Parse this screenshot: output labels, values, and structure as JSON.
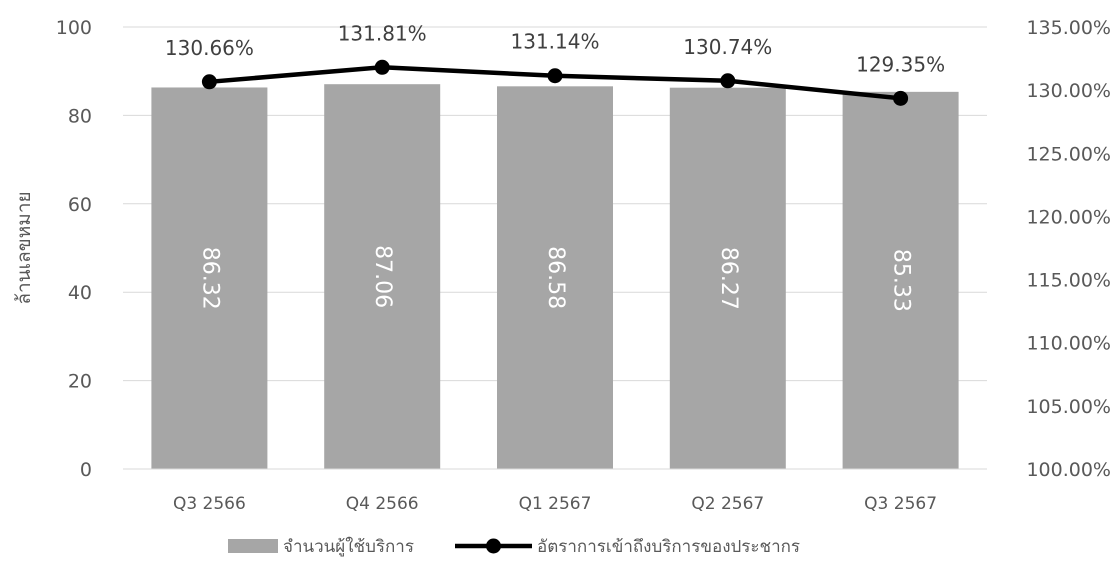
{
  "chart_data": {
    "type": "bar",
    "categories": [
      "Q3 2566",
      "Q4 2566",
      "Q1 2567",
      "Q2 2567",
      "Q3 2567"
    ],
    "series": [
      {
        "name": "จำนวนผู้ใช้บริการ",
        "type": "bar",
        "axis": "left",
        "values": [
          86.32,
          87.06,
          86.58,
          86.27,
          85.33
        ],
        "labels": [
          "86.32",
          "87.06",
          "86.58",
          "86.27",
          "85.33"
        ],
        "color": "#a6a6a6"
      },
      {
        "name": "อัตราการเข้าถึงบริการของประชากร",
        "type": "line",
        "axis": "right",
        "values": [
          130.66,
          131.81,
          131.14,
          130.74,
          129.35
        ],
        "labels": [
          "130.66%",
          "131.81%",
          "131.14%",
          "130.74%",
          "129.35%"
        ],
        "color": "#000000"
      }
    ],
    "ylabel": "ล้านเลขหมาย",
    "ylim": [
      0,
      100
    ],
    "yticks": [
      "0",
      "20",
      "40",
      "60",
      "80",
      "100"
    ],
    "y2lim": [
      100,
      135
    ],
    "y2ticks": [
      "100.00%",
      "105.00%",
      "110.00%",
      "115.00%",
      "120.00%",
      "125.00%",
      "130.00%",
      "135.00%"
    ],
    "grid": true,
    "legend": "bottom"
  }
}
